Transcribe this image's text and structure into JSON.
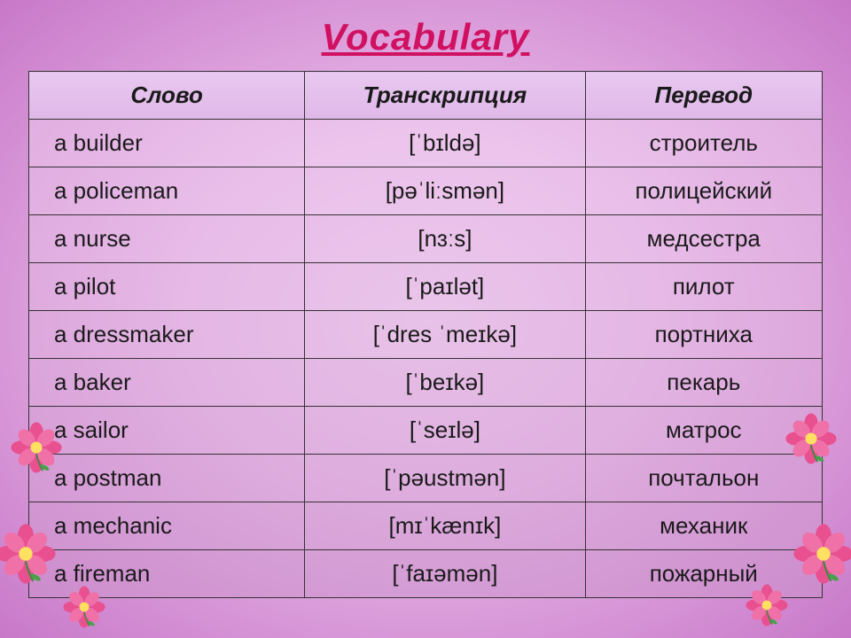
{
  "title": "Vocabulary",
  "headers": {
    "word": "Слово",
    "transcription": "Транскрипция",
    "translation": "Перевод"
  },
  "rows": [
    {
      "word": "a builder",
      "transcription": "[ˈbɪldə]",
      "translation": "строитель"
    },
    {
      "word": "a policeman",
      "transcription": "[pəˈliːsmən]",
      "translation": "полицейский"
    },
    {
      "word": "a nurse",
      "transcription": "[nɜːs]",
      "translation": "медсестра"
    },
    {
      "word": "a pilot",
      "transcription": "[ˈpaɪlət]",
      "translation": "пилот"
    },
    {
      "word": "a dressmaker",
      "transcription": "[ˈdres ˈmeɪkə]",
      "translation": "портниха"
    },
    {
      "word": "a baker",
      "transcription": "[ˈbeɪkə]",
      "translation": "пекарь"
    },
    {
      "word": "a sailor",
      "transcription": "[ˈseɪlə]",
      "translation": "матрос"
    },
    {
      "word": "a postman",
      "transcription": "[ˈpəustmən]",
      "translation": "почтальон"
    },
    {
      "word": "a mechanic",
      "transcription": "[mɪˈkænɪk]",
      "translation": "механик"
    },
    {
      "word": "a fireman",
      "transcription": "[ˈfaɪəmən]",
      "translation": "пожарный"
    }
  ],
  "colors": {
    "title": "#d01060",
    "border": "#333333",
    "text": "#1a1a1a"
  }
}
